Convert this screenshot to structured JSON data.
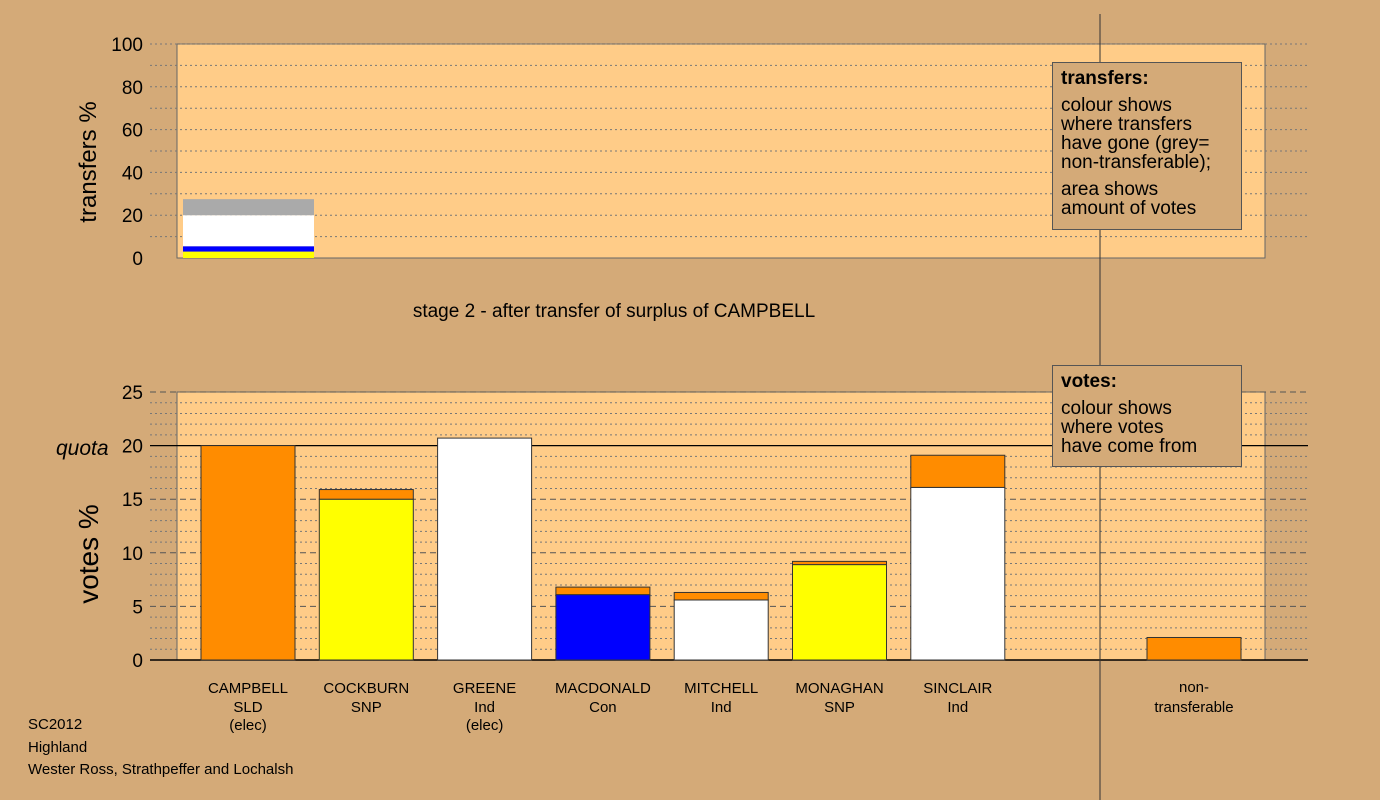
{
  "chart_data": [
    {
      "type": "bar",
      "ylabel": "transfers %",
      "ylim": [
        0,
        100
      ],
      "yticks": [
        0,
        20,
        40,
        60,
        80,
        100
      ],
      "grid": "dotted",
      "bars": [
        {
          "candidate": "CAMPBELL",
          "segments": [
            {
              "to": "SNP",
              "color": "#ffff00",
              "value": 3.0
            },
            {
              "to": "Con",
              "color": "#0000ff",
              "value": 2.5
            },
            {
              "to": "Ind",
              "color": "#ffffff",
              "value": 14.5
            },
            {
              "to": "non-transferable",
              "color": "#aaaaaa",
              "value": 7.5
            }
          ]
        }
      ]
    },
    {
      "type": "bar",
      "ylabel": "votes %",
      "ylim": [
        0,
        25
      ],
      "yticks": [
        0,
        5,
        10,
        15,
        20,
        25
      ],
      "quota": 20,
      "quota_label": "quota",
      "grid": "dashed",
      "categories": [
        {
          "name": "CAMPBELL",
          "party": "SLD",
          "note": "(elec)",
          "segments": [
            {
              "color": "#ff8c00",
              "value": 20.0
            }
          ]
        },
        {
          "name": "COCKBURN",
          "party": "SNP",
          "note": "",
          "segments": [
            {
              "color": "#ffff00",
              "value": 15.0
            },
            {
              "color": "#ff8c00",
              "value": 0.9
            }
          ]
        },
        {
          "name": "GREENE",
          "party": "Ind",
          "note": "(elec)",
          "segments": [
            {
              "color": "#ffffff",
              "value": 20.7
            }
          ]
        },
        {
          "name": "MACDONALD",
          "party": "Con",
          "note": "",
          "segments": [
            {
              "color": "#0000ff",
              "value": 6.1
            },
            {
              "color": "#ff8c00",
              "value": 0.7
            }
          ]
        },
        {
          "name": "MITCHELL",
          "party": "Ind",
          "note": "",
          "segments": [
            {
              "color": "#ffffff",
              "value": 5.6
            },
            {
              "color": "#ff8c00",
              "value": 0.7
            }
          ]
        },
        {
          "name": "MONAGHAN",
          "party": "SNP",
          "note": "",
          "segments": [
            {
              "color": "#ffff00",
              "value": 8.9
            },
            {
              "color": "#ff8c00",
              "value": 0.3
            }
          ]
        },
        {
          "name": "SINCLAIR",
          "party": "Ind",
          "note": "",
          "segments": [
            {
              "color": "#ffffff",
              "value": 16.1
            },
            {
              "color": "#ff8c00",
              "value": 3.0
            }
          ]
        }
      ],
      "nontransferable": {
        "label_line1": "non-",
        "label_line2": "transferable",
        "color": "#ff8c00",
        "value": 2.1
      }
    }
  ],
  "stage_title": "stage 2 - after transfer of surplus of CAMPBELL",
  "legend_transfers": {
    "title": "transfers:",
    "lines": [
      "colour shows",
      "where transfers",
      "have gone (grey=",
      "non-transferable);"
    ],
    "lines2": [
      "area shows",
      "amount of votes"
    ]
  },
  "legend_votes": {
    "title": "votes:",
    "lines": [
      "colour shows",
      "where votes",
      "have come from"
    ]
  },
  "footer": {
    "line1": "SC2012",
    "line2": "Highland",
    "line3": "Wester Ross, Strathpeffer and Lochalsh"
  },
  "colors": {
    "background": "#d4aa78",
    "plot_area": "#ffcc88"
  }
}
